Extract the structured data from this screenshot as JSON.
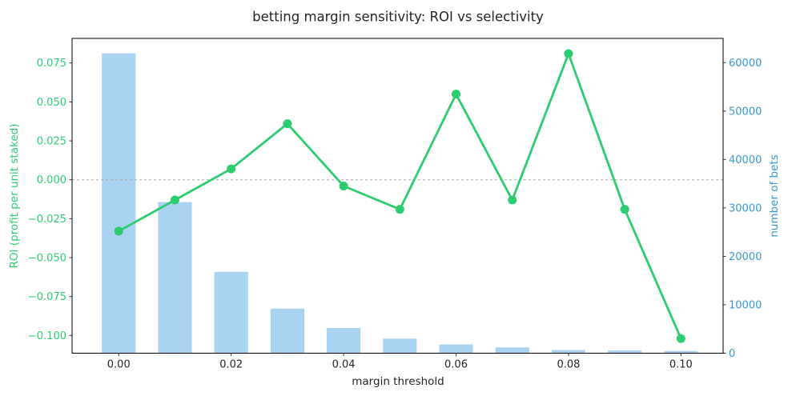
{
  "chart_data": {
    "type": "line+bar dual-axis",
    "title": "betting margin sensitivity: ROI vs selectivity",
    "xlabel": "margin threshold",
    "ylabel_left": "ROI (profit per unit staked)",
    "ylabel_right": "number of bets",
    "x": [
      0.0,
      0.01,
      0.02,
      0.03,
      0.04,
      0.05,
      0.06,
      0.07,
      0.08,
      0.09,
      0.1
    ],
    "series": [
      {
        "name": "ROI",
        "type": "line",
        "axis": "left",
        "color": "#2ecc71",
        "marker": "circle",
        "values": [
          -0.033,
          -0.013,
          0.007,
          0.036,
          -0.004,
          -0.019,
          0.055,
          -0.013,
          0.081,
          -0.019,
          -0.102
        ]
      },
      {
        "name": "number of bets",
        "type": "bar",
        "axis": "right",
        "color": "#a9d3f0",
        "bar_width": 0.006,
        "values": [
          61900,
          31200,
          16800,
          9200,
          5200,
          3000,
          1800,
          1200,
          650,
          550,
          450
        ]
      }
    ],
    "zero_reference_line": {
      "axis": "left",
      "value": 0,
      "style": "dashed",
      "color": "#aaaaaa"
    },
    "x_axis": {
      "lim": [
        -0.0083,
        0.1075
      ],
      "ticks": [
        {
          "v": 0.0,
          "label": "0.00"
        },
        {
          "v": 0.02,
          "label": "0.02"
        },
        {
          "v": 0.04,
          "label": "0.04"
        },
        {
          "v": 0.06,
          "label": "0.06"
        },
        {
          "v": 0.08,
          "label": "0.08"
        },
        {
          "v": 0.1,
          "label": "0.10"
        }
      ],
      "tick_color": "#262626"
    },
    "left_axis": {
      "lim": [
        -0.1114,
        0.0908
      ],
      "ticks": [
        {
          "v": 0.075,
          "label": "0.075"
        },
        {
          "v": 0.05,
          "label": "0.050"
        },
        {
          "v": 0.025,
          "label": "0.025"
        },
        {
          "v": 0.0,
          "label": "0.000"
        },
        {
          "v": -0.025,
          "label": "−0.025"
        },
        {
          "v": -0.05,
          "label": "−0.050"
        },
        {
          "v": -0.075,
          "label": "−0.075"
        },
        {
          "v": -0.1,
          "label": "−0.100"
        }
      ],
      "tick_color": "#2ecc71"
    },
    "right_axis": {
      "lim": [
        0,
        65000
      ],
      "ticks": [
        {
          "v": 0,
          "label": "0"
        },
        {
          "v": 10000,
          "label": "10000"
        },
        {
          "v": 20000,
          "label": "20000"
        },
        {
          "v": 30000,
          "label": "30000"
        },
        {
          "v": 40000,
          "label": "40000"
        },
        {
          "v": 50000,
          "label": "50000"
        },
        {
          "v": 60000,
          "label": "60000"
        }
      ],
      "tick_color": "#3a98d5"
    },
    "grid": false,
    "legend": "none"
  }
}
